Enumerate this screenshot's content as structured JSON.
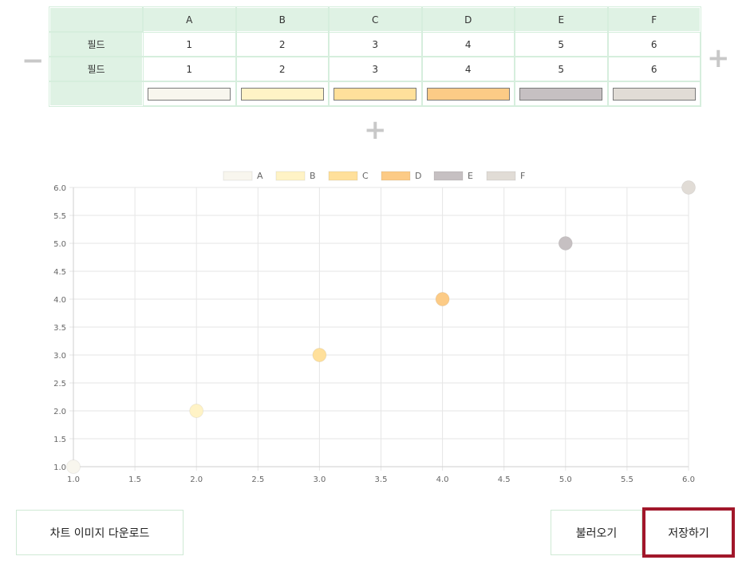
{
  "table": {
    "headers": [
      "",
      "A",
      "B",
      "C",
      "D",
      "E",
      "F"
    ],
    "rows": [
      {
        "label": "필드",
        "values": [
          "1",
          "2",
          "3",
          "4",
          "5",
          "6"
        ]
      },
      {
        "label": "필드",
        "values": [
          "1",
          "2",
          "3",
          "4",
          "5",
          "6"
        ]
      }
    ],
    "swatch_colors": [
      "#f8f6ee",
      "#fff3c6",
      "#ffe09b",
      "#fccb86",
      "#c6c0c2",
      "#e1dcd6"
    ]
  },
  "controls": {
    "remove_row": "−",
    "add_column": "+",
    "add_row": "+"
  },
  "chart_data": {
    "type": "scatter",
    "title": "",
    "xlabel": "",
    "ylabel": "",
    "xlim": [
      1.0,
      6.0
    ],
    "ylim": [
      1.0,
      6.0
    ],
    "x_ticks": [
      "1.0",
      "1.5",
      "2.0",
      "2.5",
      "3.0",
      "3.5",
      "4.0",
      "4.5",
      "5.0",
      "5.5",
      "6.0"
    ],
    "y_ticks": [
      "1.0",
      "1.5",
      "2.0",
      "2.5",
      "3.0",
      "3.5",
      "4.0",
      "4.5",
      "5.0",
      "5.5",
      "6.0"
    ],
    "grid": true,
    "legend_position": "top",
    "series": [
      {
        "name": "A",
        "color": "#f8f6ee",
        "points": [
          [
            1,
            1
          ]
        ]
      },
      {
        "name": "B",
        "color": "#fff3c6",
        "points": [
          [
            2,
            2
          ]
        ]
      },
      {
        "name": "C",
        "color": "#ffe09b",
        "points": [
          [
            3,
            3
          ]
        ]
      },
      {
        "name": "D",
        "color": "#fccb86",
        "points": [
          [
            4,
            4
          ]
        ]
      },
      {
        "name": "E",
        "color": "#c6c0c2",
        "points": [
          [
            5,
            5
          ]
        ]
      },
      {
        "name": "F",
        "color": "#e1dcd6",
        "points": [
          [
            6,
            6
          ]
        ]
      }
    ]
  },
  "buttons": {
    "download": "차트 이미지 다운로드",
    "load": "불러오기",
    "save": "저장하기"
  }
}
